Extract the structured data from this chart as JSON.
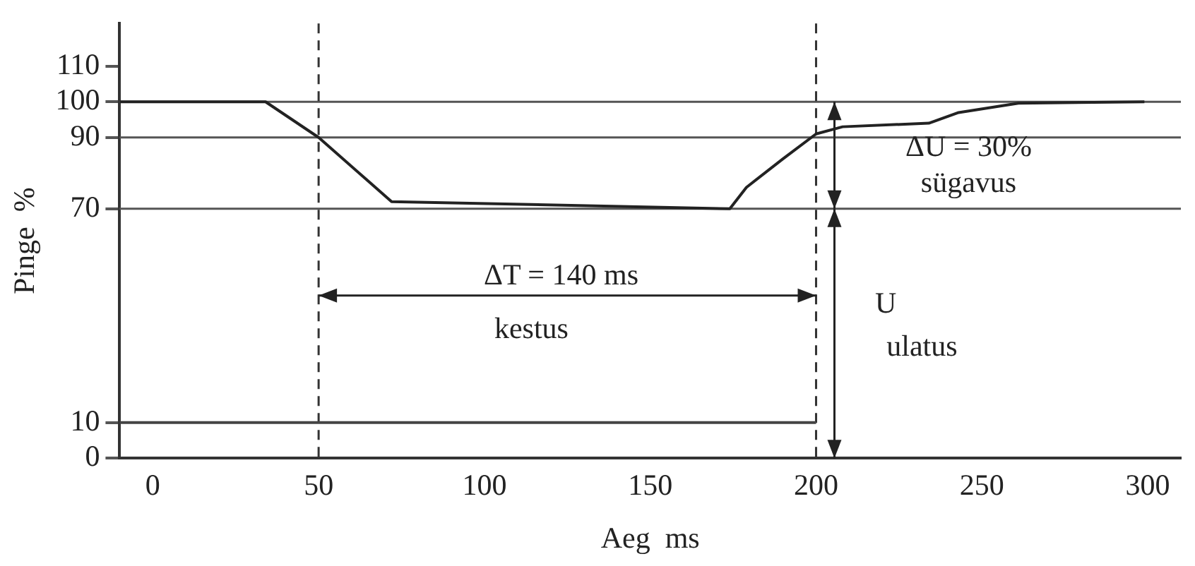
{
  "chart_data": {
    "type": "line",
    "xlabel": "Aeg  ms",
    "ylabel": "Pinge  %",
    "series": [
      {
        "color": "#222222",
        "x": [
          -10,
          34,
          50,
          72,
          174,
          179,
          190,
          200,
          208,
          234,
          243,
          261,
          299
        ],
        "values": [
          100,
          100,
          90,
          72,
          70,
          76,
          84,
          91,
          93,
          94,
          97,
          99.6,
          100
        ]
      },
      {
        "color": "#444444",
        "x": [
          -10,
          200
        ],
        "values": [
          10,
          10
        ]
      }
    ],
    "xlim": [
      -10,
      310
    ],
    "xticks": [
      0,
      50,
      100,
      150,
      200,
      250,
      300
    ],
    "ylim": [
      0,
      122
    ],
    "yticks": [
      0,
      10,
      70,
      90,
      100,
      110
    ],
    "ref_lines": [
      {
        "axis": "y",
        "value": 100,
        "color": "#555555",
        "line_style": "solid"
      },
      {
        "axis": "y",
        "value": 90,
        "color": "#555555",
        "line_style": "solid"
      },
      {
        "axis": "y",
        "value": 70,
        "color": "#555555",
        "line_style": "solid"
      },
      {
        "axis": "x",
        "value": 50,
        "color": "#333333",
        "line_style": "dashed"
      },
      {
        "axis": "x",
        "value": 200,
        "color": "#333333",
        "line_style": "dashed"
      }
    ],
    "annotations": [
      "ΔT = 140 ms",
      "kestus",
      "ΔU = 30%",
      "sügavus",
      "U",
      "ulatus"
    ],
    "grid": false,
    "legend": false,
    "marker": "none",
    "line_style": "solid"
  }
}
